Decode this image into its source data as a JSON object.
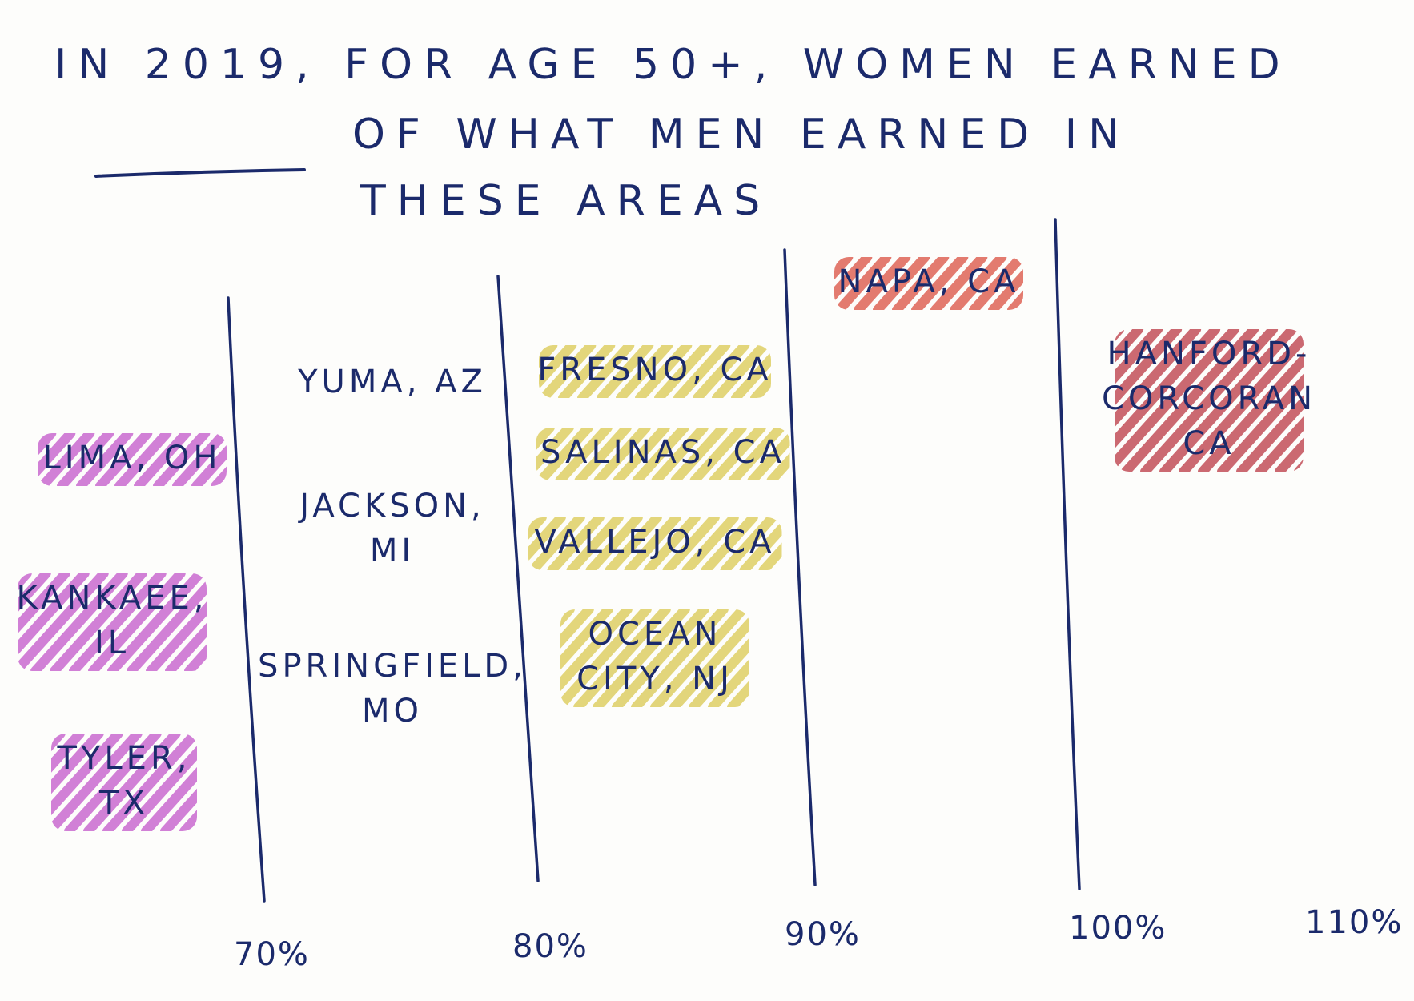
{
  "chart_data": {
    "type": "table",
    "title_lines": [
      "IN 2019, FOR AGE 50+, WOMEN EARNED",
      "OF WHAT MEN EARNED IN",
      "THESE AREAS"
    ],
    "x_ticks": [
      "70%",
      "80%",
      "90%",
      "100%",
      "110%"
    ],
    "bins": [
      {
        "range": "below 70%",
        "color": "#c04fc8",
        "cities": [
          [
            "LIMA, OH"
          ],
          [
            "KANKAEE,",
            "IL"
          ],
          [
            "TYLER,",
            "TX"
          ]
        ]
      },
      {
        "range": "70% to 80%",
        "color": "none",
        "cities": [
          [
            "YUMA, AZ"
          ],
          [
            "JACKSON,",
            "MI"
          ],
          [
            "SPRINGFIELD,",
            "MO"
          ]
        ]
      },
      {
        "range": "80% to 90%",
        "color": "#d8c64a",
        "cities": [
          [
            "FRESNO, CA"
          ],
          [
            "SALINAS, CA"
          ],
          [
            "VALLEJO, CA"
          ],
          [
            "OCEAN",
            "CITY, NJ"
          ]
        ]
      },
      {
        "range": "90% to 100%",
        "color": "#d9483a",
        "cities": [
          [
            "NAPA, CA"
          ]
        ]
      },
      {
        "range": "100% to 110%",
        "color": "#b8303c",
        "cities": [
          [
            "HANFORD-",
            "CORCORAN",
            "CA"
          ]
        ]
      }
    ]
  }
}
